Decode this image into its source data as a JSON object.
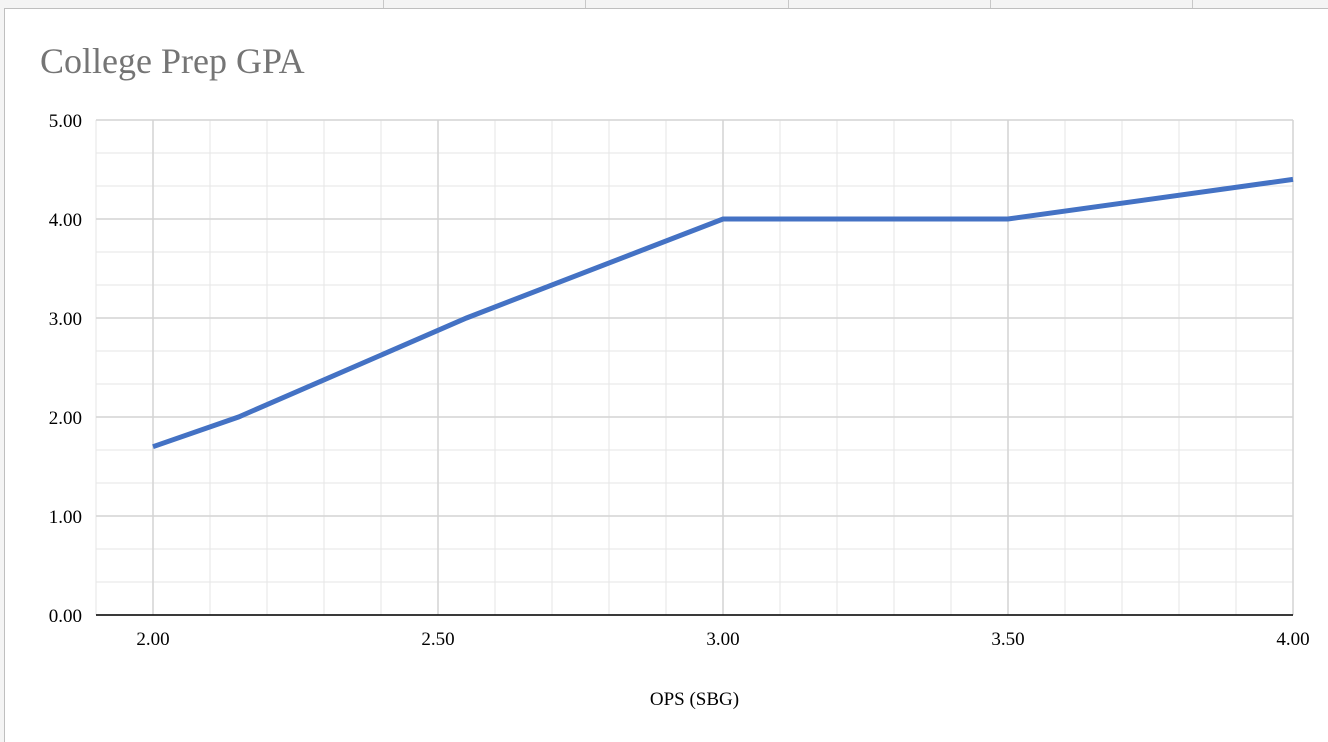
{
  "chart_data": {
    "type": "line",
    "title": "College Prep GPA",
    "xlabel": "OPS (SBG)",
    "ylabel": "",
    "xlim": [
      1.9,
      4.0
    ],
    "ylim": [
      0,
      5
    ],
    "x_ticks": [
      "2.00",
      "2.50",
      "3.00",
      "3.50",
      "4.00"
    ],
    "y_ticks": [
      "0.00",
      "1.00",
      "2.00",
      "3.00",
      "4.00",
      "5.00"
    ],
    "grid": true,
    "legend": "none",
    "series": [
      {
        "x": [
          2.0,
          2.15,
          2.55,
          3.0,
          3.5,
          4.0
        ],
        "y": [
          1.7,
          2.0,
          3.0,
          4.0,
          4.0,
          4.4
        ],
        "color": "#4472c4"
      }
    ]
  }
}
